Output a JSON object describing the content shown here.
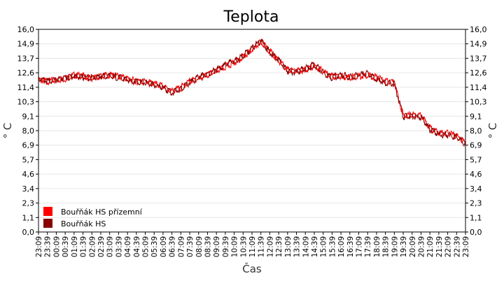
{
  "chart_data": {
    "type": "line",
    "title": "Teplota",
    "xlabel": "Čas",
    "ylabel": "° C",
    "ylabel_right": "° C",
    "ylim": [
      0,
      16
    ],
    "yticks": [
      "0,0",
      "1,1",
      "2,3",
      "3,4",
      "4,6",
      "5,7",
      "6,9",
      "8,0",
      "9,1",
      "10,3",
      "11,4",
      "12,6",
      "13,7",
      "14,9",
      "16,0"
    ],
    "x_tick_labels": [
      "23:09",
      "23:39",
      "00:09",
      "00:39",
      "01:09",
      "01:39",
      "02:09",
      "02:39",
      "03:09",
      "03:39",
      "04:09",
      "04:39",
      "05:09",
      "05:39",
      "06:09",
      "06:39",
      "07:09",
      "07:39",
      "08:09",
      "08:39",
      "09:09",
      "09:39",
      "10:09",
      "10:39",
      "11:09",
      "11:39",
      "12:09",
      "12:39",
      "13:09",
      "13:39",
      "14:09",
      "14:39",
      "15:09",
      "15:39",
      "16:09",
      "16:39",
      "17:09",
      "17:39",
      "18:09",
      "18:39",
      "19:09",
      "19:39",
      "20:09",
      "20:39",
      "21:09",
      "21:39",
      "22:09",
      "22:39",
      "23:09"
    ],
    "grid": true,
    "legend_position": "bottom-left",
    "series": [
      {
        "name": "Bouřňák HS přízemní",
        "color": "#ff0000",
        "x": [
          "23:09",
          "23:39",
          "00:09",
          "00:39",
          "01:09",
          "01:39",
          "02:09",
          "02:39",
          "03:09",
          "03:39",
          "04:09",
          "04:39",
          "05:09",
          "05:39",
          "06:09",
          "06:39",
          "07:09",
          "07:39",
          "08:09",
          "08:39",
          "09:09",
          "09:39",
          "10:09",
          "10:39",
          "11:09",
          "11:39",
          "12:09",
          "12:39",
          "13:09",
          "13:39",
          "14:09",
          "14:39",
          "15:09",
          "15:39",
          "16:09",
          "16:39",
          "17:09",
          "17:39",
          "18:09",
          "18:39",
          "19:09",
          "19:39",
          "20:09",
          "20:39",
          "21:09",
          "21:39",
          "22:09",
          "22:39",
          "23:09"
        ],
        "values": [
          12.0,
          11.9,
          12.0,
          12.1,
          12.4,
          12.3,
          12.1,
          12.3,
          12.4,
          12.3,
          12.1,
          11.9,
          11.9,
          11.7,
          11.5,
          11.1,
          11.4,
          11.9,
          12.1,
          12.4,
          12.7,
          13.0,
          13.4,
          13.8,
          14.4,
          15.0,
          14.3,
          13.5,
          12.8,
          12.7,
          12.8,
          13.1,
          12.7,
          12.3,
          12.3,
          12.2,
          12.3,
          12.4,
          12.2,
          11.9,
          11.8,
          9.2,
          9.3,
          9.2,
          8.2,
          7.8,
          7.8,
          7.6,
          7.0
        ]
      },
      {
        "name": "Bouřňák HS",
        "color": "#880000",
        "x": [
          "23:09",
          "23:39",
          "00:09",
          "00:39",
          "01:09",
          "01:39",
          "02:09",
          "02:39",
          "03:09",
          "03:39",
          "04:09",
          "04:39",
          "05:09",
          "05:39",
          "06:09",
          "06:39",
          "07:09",
          "07:39",
          "08:09",
          "08:39",
          "09:09",
          "09:39",
          "10:09",
          "10:39",
          "11:09",
          "11:39",
          "12:09",
          "12:39",
          "13:09",
          "13:39",
          "14:09",
          "14:39",
          "15:09",
          "15:39",
          "16:09",
          "16:39",
          "17:09",
          "17:39",
          "18:09",
          "18:39",
          "19:09",
          "19:39",
          "20:09",
          "20:39",
          "21:09",
          "21:39",
          "22:09",
          "22:39",
          "23:09"
        ],
        "values": [
          12.1,
          11.9,
          12.0,
          12.2,
          12.3,
          12.2,
          12.2,
          12.3,
          12.3,
          12.2,
          12.0,
          11.9,
          11.8,
          11.6,
          11.4,
          11.0,
          11.3,
          11.8,
          12.2,
          12.5,
          12.8,
          13.2,
          13.5,
          13.9,
          14.5,
          15.1,
          14.2,
          13.6,
          12.7,
          12.6,
          12.9,
          13.2,
          12.6,
          12.2,
          12.4,
          12.2,
          12.4,
          12.5,
          12.1,
          11.8,
          11.7,
          9.1,
          9.2,
          9.1,
          8.1,
          7.7,
          7.7,
          7.5,
          6.9
        ]
      }
    ]
  }
}
